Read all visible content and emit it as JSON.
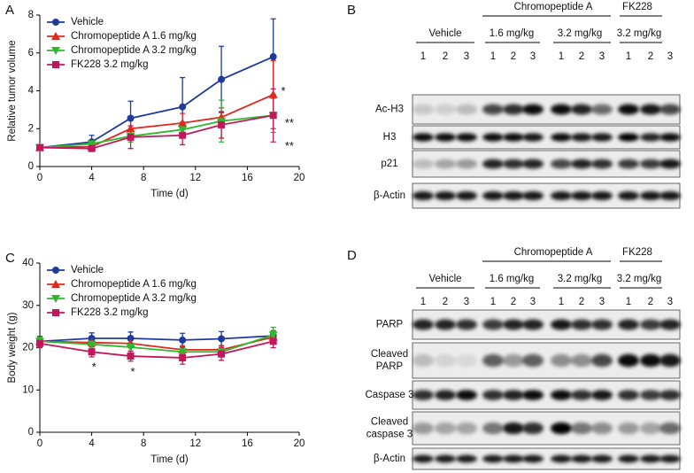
{
  "chart_data": [
    {
      "type": "line",
      "panel": "A",
      "x_label": "Time (d)",
      "y_label": "Relative tumor volume",
      "x": [
        0,
        4,
        7,
        11,
        14,
        18
      ],
      "xlim": [
        0,
        20
      ],
      "xticks": [
        0,
        4,
        8,
        12,
        16,
        20
      ],
      "ylim": [
        0,
        8
      ],
      "yticks": [
        0,
        2,
        4,
        6,
        8
      ],
      "grid": false,
      "legend": "top-left",
      "series": [
        {
          "name": "Vehicle",
          "color": "#1f3a9e",
          "marker": "circle",
          "values": [
            1,
            1.3,
            2.55,
            3.15,
            4.6,
            5.8
          ],
          "errors": [
            0,
            0.35,
            0.9,
            1.55,
            1.75,
            2.0
          ]
        },
        {
          "name": "Chromopeptide A 1.6 mg/kg",
          "color": "#e3261e",
          "marker": "triangle-up",
          "values": [
            1,
            1.05,
            2.0,
            2.3,
            2.6,
            3.8
          ],
          "errors": [
            0,
            0.1,
            0.6,
            0.5,
            0.5,
            1.8
          ]
        },
        {
          "name": "Chromopeptide A 3.2 mg/kg",
          "color": "#2eb82e",
          "marker": "triangle-down",
          "values": [
            1,
            1.2,
            1.6,
            1.95,
            2.4,
            2.7
          ],
          "errors": [
            0,
            0.2,
            0.3,
            0.4,
            1.1,
            0.9
          ]
        },
        {
          "name": "FK228 3.2 mg/kg",
          "color": "#c2185b",
          "marker": "square",
          "values": [
            1,
            0.95,
            1.55,
            1.65,
            2.2,
            2.7
          ],
          "errors": [
            0,
            0.1,
            0.6,
            0.5,
            0.7,
            1.4
          ]
        }
      ],
      "annotations": [
        {
          "text": "*",
          "x": 18.6,
          "y": 4.1
        },
        {
          "text": "**",
          "x": 18.9,
          "y": 2.4
        },
        {
          "text": "**",
          "x": 18.9,
          "y": 1.2
        }
      ]
    },
    {
      "type": "line",
      "panel": "C",
      "x_label": "Time (d)",
      "y_label": "Body weight (g)",
      "x": [
        0,
        4,
        7,
        11,
        14,
        18
      ],
      "xlim": [
        0,
        20
      ],
      "xticks": [
        0,
        4,
        8,
        12,
        16,
        20
      ],
      "ylim": [
        0,
        40
      ],
      "yticks": [
        0,
        10,
        20,
        30,
        40
      ],
      "grid": false,
      "legend": "top-left",
      "series": [
        {
          "name": "Vehicle",
          "color": "#1f3a9e",
          "marker": "circle",
          "values": [
            21.5,
            22.2,
            22.2,
            21.8,
            22.1,
            22.8
          ],
          "errors": [
            1.2,
            1.3,
            1.5,
            1.6,
            1.7,
            1.2
          ]
        },
        {
          "name": "Chromopeptide A 1.6 mg/kg",
          "color": "#e3261e",
          "marker": "triangle-up",
          "values": [
            21.5,
            21.2,
            21.0,
            19.5,
            19.5,
            22.5
          ],
          "errors": [
            1.0,
            1.0,
            1.0,
            1.0,
            1.0,
            1.5
          ]
        },
        {
          "name": "Chromopeptide A 3.2 mg/kg",
          "color": "#2eb82e",
          "marker": "triangle-down",
          "values": [
            21.5,
            20.8,
            20.1,
            19.0,
            19.0,
            23.0
          ],
          "errors": [
            1.0,
            1.0,
            1.0,
            1.0,
            1.0,
            1.8
          ]
        },
        {
          "name": "FK228 3.2 mg/kg",
          "color": "#c2185b",
          "marker": "square",
          "values": [
            21.0,
            19.0,
            18.0,
            17.6,
            18.5,
            21.5
          ],
          "errors": [
            1.0,
            1.2,
            1.2,
            1.5,
            1.5,
            1.5
          ]
        }
      ],
      "annotations": [
        {
          "text": "*",
          "x": 4,
          "y": 15.9
        },
        {
          "text": "*",
          "x": 7,
          "y": 14.7
        }
      ]
    }
  ],
  "blot_panels": [
    {
      "panel": "B",
      "top_headers": [
        "Chromopeptide A",
        "FK228"
      ],
      "sub_headers": [
        "Vehicle",
        "1.6 mg/kg",
        "3.2 mg/kg",
        "3.2 mg/kg"
      ],
      "lanes": [
        "1",
        "2",
        "3",
        "1",
        "2",
        "3",
        "1",
        "2",
        "3",
        "1",
        "2",
        "3"
      ],
      "rows": [
        [
          "Ac-H3"
        ],
        [
          "H3"
        ],
        [
          "p21"
        ],
        [
          "β-Actin"
        ]
      ]
    },
    {
      "panel": "D",
      "top_headers": [
        "Chromopeptide A",
        "FK228"
      ],
      "sub_headers": [
        "Vehicle",
        "1.6 mg/kg",
        "3.2 mg/kg",
        "3.2 mg/kg"
      ],
      "lanes": [
        "1",
        "2",
        "3",
        "1",
        "2",
        "3",
        "1",
        "2",
        "3",
        "1",
        "2",
        "3"
      ],
      "rows": [
        [
          "PARP"
        ],
        [
          "Cleaved",
          "PARP"
        ],
        [
          "Caspase 3"
        ],
        [
          "Cleaved",
          "caspase 3"
        ],
        [
          "β-Actin"
        ]
      ]
    }
  ]
}
